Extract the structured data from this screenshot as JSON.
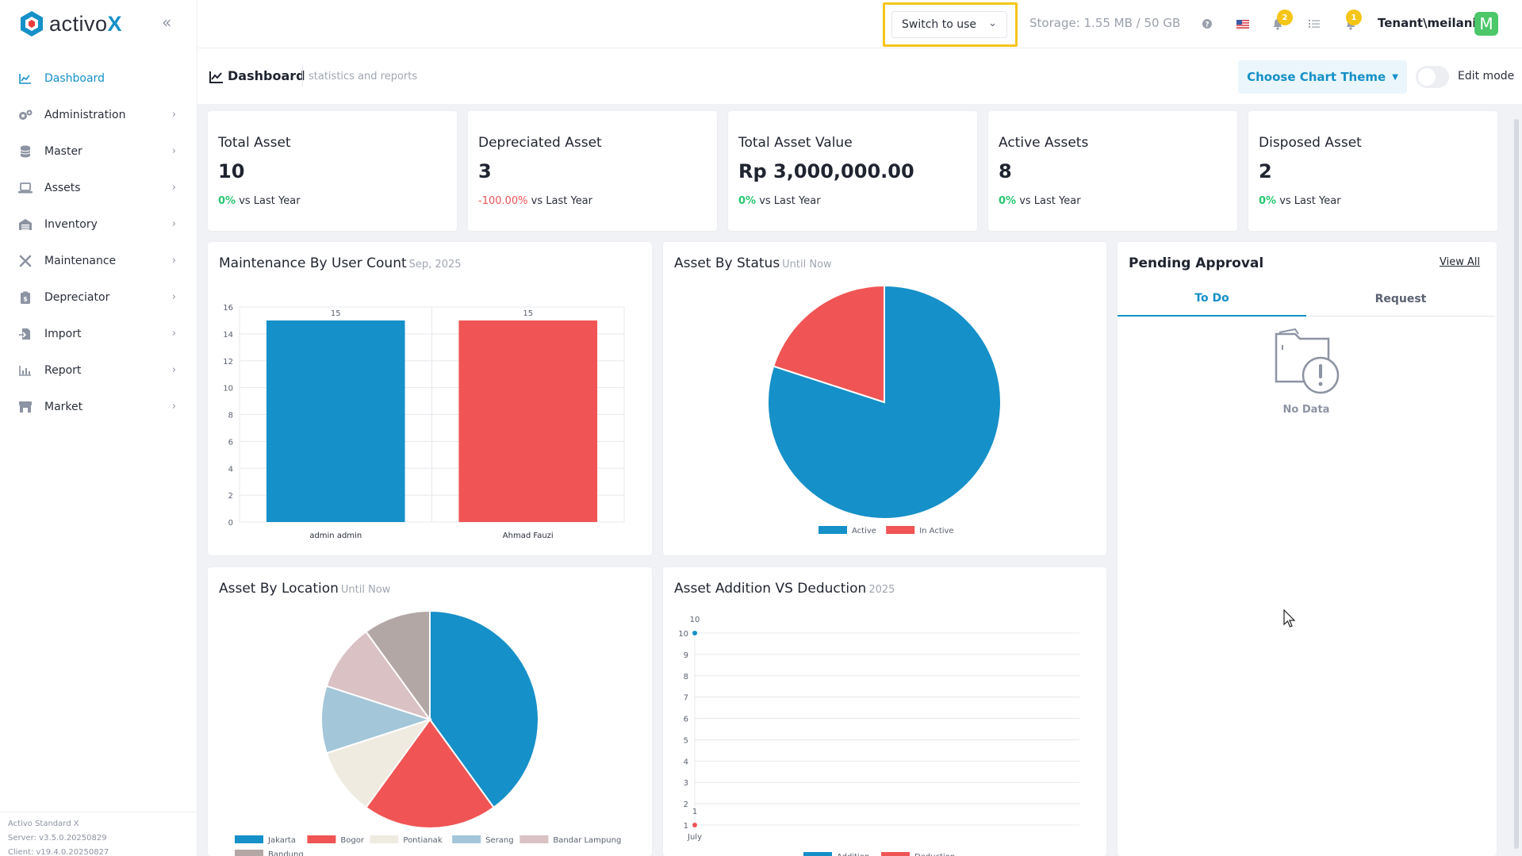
{
  "brand": {
    "name_prefix": "activo",
    "name_suffix": "X"
  },
  "nav": [
    {
      "label": "Dashboard",
      "icon": "dashboard-chart-icon",
      "active": true
    },
    {
      "label": "Administration",
      "icon": "gears-icon"
    },
    {
      "label": "Master",
      "icon": "database-icon"
    },
    {
      "label": "Assets",
      "icon": "laptop-icon"
    },
    {
      "label": "Inventory",
      "icon": "warehouse-icon"
    },
    {
      "label": "Maintenance",
      "icon": "tools-icon"
    },
    {
      "label": "Depreciator",
      "icon": "clipboard-icon"
    },
    {
      "label": "Import",
      "icon": "import-file-icon"
    },
    {
      "label": "Report",
      "icon": "bar-chart-icon"
    },
    {
      "label": "Market",
      "icon": "store-icon"
    }
  ],
  "footer": {
    "product": "Activo Standard X",
    "server": "Server: v3.5.0.20250829",
    "client": "Client: v19.4.0.20250827"
  },
  "header": {
    "switch_label": "Switch to use",
    "storage": "Storage: 1.55 MB / 50 GB",
    "notif_count": "2",
    "alert_count": "1",
    "tenant": "Tenant\\meilani",
    "avatar_letter": "M"
  },
  "subheader": {
    "title": "Dashboard",
    "subtitle": "statistics and reports",
    "theme_button": "Choose Chart Theme",
    "edit_mode": "Edit mode"
  },
  "stats": [
    {
      "title": "Total Asset",
      "value": "10",
      "delta": "0%",
      "delta_dir": "up",
      "suffix": " vs Last Year"
    },
    {
      "title": "Depreciated Asset",
      "value": "3",
      "delta": "-100.00%",
      "delta_dir": "down",
      "suffix": " vs Last Year"
    },
    {
      "title": "Total Asset Value",
      "value": "Rp 3,000,000.00",
      "delta": "0%",
      "delta_dir": "up",
      "suffix": " vs Last Year"
    },
    {
      "title": "Active Assets",
      "value": "8",
      "delta": "0%",
      "delta_dir": "up",
      "suffix": " vs Last Year"
    },
    {
      "title": "Disposed Asset",
      "value": "2",
      "delta": "0%",
      "delta_dir": "up",
      "suffix": " vs Last Year"
    }
  ],
  "panels": {
    "maintenance": {
      "title": "Maintenance By User Count",
      "sub": "Sep, 2025"
    },
    "status": {
      "title": "Asset By Status",
      "sub": "Until Now"
    },
    "pending": {
      "title": "Pending Approval",
      "view_all": "View All",
      "tab_todo": "To Do",
      "tab_request": "Request",
      "no_data": "No Data"
    },
    "location": {
      "title": "Asset By Location",
      "sub": "Until Now"
    },
    "addition": {
      "title": "Asset Addition VS Deduction",
      "sub": "2025"
    }
  },
  "chart_data": [
    {
      "type": "bar",
      "categories": [
        "admin admin",
        "Ahmad Fauzi"
      ],
      "values": [
        15,
        15
      ],
      "colors": [
        "#1690c8",
        "#f05454"
      ],
      "ylim": [
        0,
        16
      ],
      "yticks": [
        "16",
        "14",
        "12",
        "10",
        "8",
        "6",
        "4",
        "2",
        "0"
      ]
    },
    {
      "type": "pie",
      "labels": [
        "Active",
        "In Active"
      ],
      "values": [
        8,
        2
      ],
      "colors": [
        "#1690c8",
        "#f05454"
      ]
    },
    {
      "type": "pie",
      "labels": [
        "Jakarta",
        "Bogor",
        "Pontianak",
        "Serang",
        "Bandar Lampung",
        "Bandung"
      ],
      "values": [
        4,
        2,
        1,
        1,
        1,
        1
      ],
      "colors": [
        "#1690c8",
        "#f05454",
        "#efebe0",
        "#a3c6d8",
        "#d9c1c4",
        "#b3a7a6"
      ]
    },
    {
      "type": "line",
      "x": [
        "July"
      ],
      "series": [
        {
          "name": "Addition",
          "values": [
            10
          ],
          "color": "#1690c8"
        },
        {
          "name": "Deduction",
          "values": [
            1
          ],
          "color": "#f05454"
        }
      ],
      "point_labels": [
        "10",
        "1"
      ],
      "ylim": [
        1,
        10
      ],
      "yticks": [
        "10",
        "9",
        "8",
        "7",
        "6",
        "5",
        "4",
        "3",
        "2",
        "1"
      ]
    }
  ]
}
